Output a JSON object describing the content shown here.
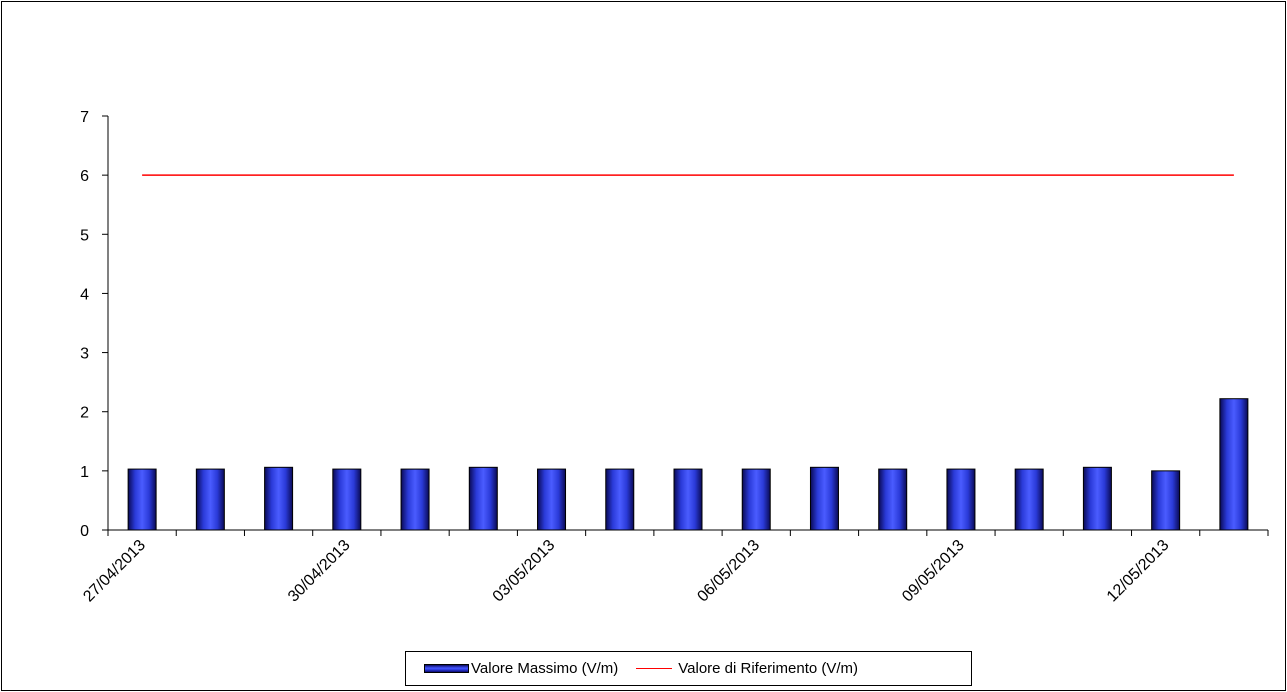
{
  "chart_data": {
    "type": "bar",
    "title": "",
    "xlabel": "",
    "ylabel": "",
    "ylim": [
      0,
      7
    ],
    "y_ticks": [
      "0",
      "1",
      "2",
      "3",
      "4",
      "5",
      "6",
      "7"
    ],
    "categories": [
      "27/04/2013",
      "28/04/2013",
      "29/04/2013",
      "30/04/2013",
      "01/05/2013",
      "02/05/2013",
      "03/05/2013",
      "04/05/2013",
      "05/05/2013",
      "06/05/2013",
      "07/05/2013",
      "08/05/2013",
      "09/05/2013",
      "10/05/2013",
      "11/05/2013",
      "12/05/2013",
      "13/05/2013"
    ],
    "shown_x_labels": [
      "27/04/2013",
      "30/04/2013",
      "03/05/2013",
      "06/05/2013",
      "09/05/2013",
      "12/05/2013"
    ],
    "series": [
      {
        "name": "Valore Massimo (V/m)",
        "kind": "bar",
        "color": "#2233dd",
        "values": [
          1.03,
          1.03,
          1.06,
          1.03,
          1.03,
          1.06,
          1.03,
          1.03,
          1.03,
          1.03,
          1.06,
          1.03,
          1.03,
          1.03,
          1.06,
          1.0,
          2.22
        ]
      },
      {
        "name": "Valore di Riferimento (V/m)",
        "kind": "line",
        "color": "#ff0000",
        "values": [
          6,
          6,
          6,
          6,
          6,
          6,
          6,
          6,
          6,
          6,
          6,
          6,
          6,
          6,
          6,
          6,
          6
        ]
      }
    ],
    "grid": false,
    "legend_position": "bottom"
  },
  "legend": {
    "bar_label": "Valore Massimo (V/m)",
    "line_label": "Valore di Riferimento (V/m)"
  }
}
